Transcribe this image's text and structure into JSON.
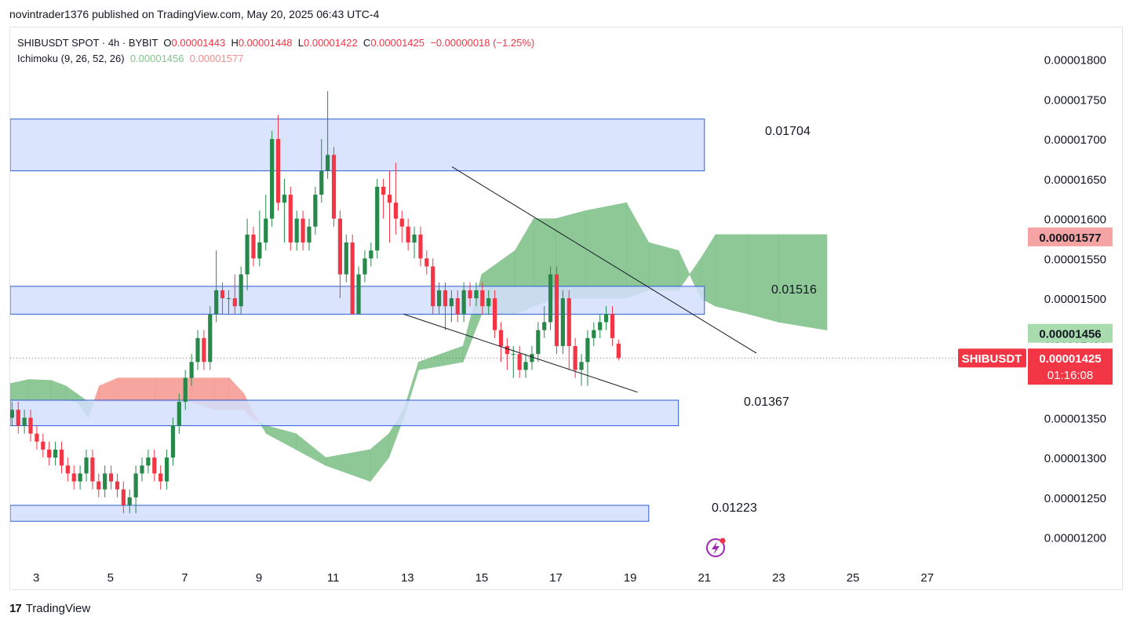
{
  "publisher_line": "novintrader1376 published on TradingView.com, May 20, 2025 06:43 UTC-4",
  "legend": {
    "symbol": "SHIBUSDT SPOT · 4h · BYBIT",
    "o_label": "O",
    "o": "0.00001443",
    "h_label": "H",
    "h": "0.00001448",
    "l_label": "L",
    "l": "0.00001422",
    "c_label": "C",
    "c": "0.00001425",
    "change": "−0.00000018 (−1.25%)",
    "ichimoku_label": "Ichimoku (9, 26, 52, 26)",
    "ichimoku_a": "0.00001456",
    "ichimoku_b": "0.00001577"
  },
  "footer": {
    "logo": "17",
    "brand": "TradingView"
  },
  "colors": {
    "up": "#26894a",
    "down": "#f23645",
    "zone_fill": "#d4dffc",
    "zone_border": "#2d5bd6",
    "cloud_bull": "#7bbf85",
    "cloud_bear": "#f5978e",
    "grid": "#ffffff"
  },
  "chart_data": {
    "type": "candlestick",
    "y_ticks": [
      "0.00001800",
      "0.00001750",
      "0.00001700",
      "0.00001650",
      "0.00001600",
      "0.00001550",
      "0.00001500",
      "0.00001450",
      "0.00001400",
      "0.00001350",
      "0.00001300",
      "0.00001250",
      "0.00001200"
    ],
    "x_ticks": [
      {
        "day": 3,
        "label": "3"
      },
      {
        "day": 5,
        "label": "5"
      },
      {
        "day": 7,
        "label": "7"
      },
      {
        "day": 9,
        "label": "9"
      },
      {
        "day": 11,
        "label": "11"
      },
      {
        "day": 13,
        "label": "13"
      },
      {
        "day": 15,
        "label": "15"
      },
      {
        "day": 17,
        "label": "17"
      },
      {
        "day": 19,
        "label": "19"
      },
      {
        "day": 21,
        "label": "21"
      },
      {
        "day": 23,
        "label": "23"
      },
      {
        "day": 25,
        "label": "25"
      },
      {
        "day": 27,
        "label": "27"
      }
    ],
    "ylim": [
      1.17e-05,
      1.84e-05
    ],
    "xlim_days": [
      2.3,
      29.5
    ],
    "zones": [
      {
        "top": 1.725e-05,
        "bottom": 1.66e-05,
        "day_start": 2.3,
        "day_end": 21.0,
        "label": "0.01704"
      },
      {
        "top": 1.515e-05,
        "bottom": 1.48e-05,
        "day_start": 2.3,
        "day_end": 21.0,
        "label": "0.01516"
      },
      {
        "top": 1.372e-05,
        "bottom": 1.34e-05,
        "day_start": 2.3,
        "day_end": 20.3,
        "label": "0.01367"
      },
      {
        "top": 1.24e-05,
        "bottom": 1.22e-05,
        "day_start": 2.3,
        "day_end": 19.5,
        "label": "0.01223"
      }
    ],
    "trendlines": [
      {
        "x1": 14.2,
        "y1": 1.665e-05,
        "x2": 22.4,
        "y2": 1.431e-05
      },
      {
        "x1": 12.9,
        "y1": 1.48e-05,
        "x2": 19.2,
        "y2": 1.382e-05
      }
    ],
    "price_badges": [
      {
        "value": "0.00001577",
        "price": 1.577e-05,
        "bg": "#f5a3a3",
        "fg": "#131722"
      },
      {
        "value": "0.00001456",
        "price": 1.456e-05,
        "bg": "#a8dbae",
        "fg": "#131722"
      }
    ],
    "current": {
      "symbol": "SHIBUSDT",
      "value": "0.00001425",
      "countdown": "01:16:08",
      "price": 1.425e-05
    },
    "cloud": [
      [
        2.3,
        1.393e-05,
        1.372e-05
      ],
      [
        2.8,
        1.398e-05,
        1.372e-05
      ],
      [
        3.4,
        1.397e-05,
        1.372e-05
      ],
      [
        3.8,
        1.39e-05,
        1.372e-05
      ],
      [
        4.1,
        1.38e-05,
        1.37e-05
      ],
      [
        4.4,
        1.37e-05,
        1.35e-05
      ],
      [
        4.7,
        1.37e-05,
        1.39e-05
      ],
      [
        5.2,
        1.37e-05,
        1.4e-05
      ],
      [
        6.2,
        1.37e-05,
        1.4e-05
      ],
      [
        7.2,
        1.37e-05,
        1.4e-05
      ],
      [
        7.8,
        1.36e-05,
        1.4e-05
      ],
      [
        8.2,
        1.36e-05,
        1.4e-05
      ],
      [
        8.6,
        1.36e-05,
        1.38e-05
      ],
      [
        8.8,
        1.35e-05,
        1.36e-05
      ],
      [
        9.2,
        1.34e-05,
        1.33e-05
      ],
      [
        10.0,
        1.33e-05,
        1.31e-05
      ],
      [
        10.8,
        1.3e-05,
        1.29e-05
      ],
      [
        12.0,
        1.31e-05,
        1.27e-05
      ],
      [
        12.5,
        1.33e-05,
        1.3e-05
      ],
      [
        12.9,
        1.36e-05,
        1.35e-05
      ],
      [
        13.3,
        1.42e-05,
        1.41e-05
      ],
      [
        14.5,
        1.44e-05,
        1.42e-05
      ],
      [
        15.0,
        1.53e-05,
        1.48e-05
      ],
      [
        15.9,
        1.56e-05,
        1.48e-05
      ],
      [
        16.4,
        1.6e-05,
        1.49e-05
      ],
      [
        17.0,
        1.6e-05,
        1.5e-05
      ],
      [
        17.8,
        1.61e-05,
        1.5e-05
      ],
      [
        18.9,
        1.62e-05,
        1.5e-05
      ],
      [
        19.5,
        1.57e-05,
        1.51e-05
      ],
      [
        20.3,
        1.56e-05,
        1.51e-05
      ],
      [
        20.6,
        1.53e-05,
        1.53e-05
      ],
      [
        20.9,
        1.55e-05,
        1.5e-05
      ],
      [
        21.3,
        1.58e-05,
        1.49e-05
      ],
      [
        22.2,
        1.58e-05,
        1.48e-05
      ],
      [
        23.0,
        1.58e-05,
        1.47e-05
      ],
      [
        24.3,
        1.58e-05,
        1.46e-05
      ]
    ],
    "candles": [
      [
        1.35e-05,
        1.36e-05,
        1.37e-05,
        1.34e-05
      ],
      [
        1.36e-05,
        1.34e-05,
        1.37e-05,
        1.33e-05
      ],
      [
        1.34e-05,
        1.35e-05,
        1.36e-05,
        1.33e-05
      ],
      [
        1.35e-05,
        1.33e-05,
        1.36e-05,
        1.32e-05
      ],
      [
        1.33e-05,
        1.32e-05,
        1.34e-05,
        1.31e-05
      ],
      [
        1.32e-05,
        1.31e-05,
        1.33e-05,
        1.3e-05
      ],
      [
        1.31e-05,
        1.3e-05,
        1.32e-05,
        1.29e-05
      ],
      [
        1.3e-05,
        1.31e-05,
        1.32e-05,
        1.29e-05
      ],
      [
        1.31e-05,
        1.29e-05,
        1.32e-05,
        1.28e-05
      ],
      [
        1.29e-05,
        1.28e-05,
        1.3e-05,
        1.27e-05
      ],
      [
        1.28e-05,
        1.27e-05,
        1.29e-05,
        1.26e-05
      ],
      [
        1.27e-05,
        1.28e-05,
        1.29e-05,
        1.26e-05
      ],
      [
        1.28e-05,
        1.3e-05,
        1.31e-05,
        1.27e-05
      ],
      [
        1.3e-05,
        1.27e-05,
        1.31e-05,
        1.26e-05
      ],
      [
        1.27e-05,
        1.26e-05,
        1.28e-05,
        1.25e-05
      ],
      [
        1.26e-05,
        1.28e-05,
        1.29e-05,
        1.25e-05
      ],
      [
        1.28e-05,
        1.27e-05,
        1.29e-05,
        1.26e-05
      ],
      [
        1.27e-05,
        1.26e-05,
        1.28e-05,
        1.25e-05
      ],
      [
        1.26e-05,
        1.24e-05,
        1.27e-05,
        1.23e-05
      ],
      [
        1.24e-05,
        1.25e-05,
        1.26e-05,
        1.23e-05
      ],
      [
        1.25e-05,
        1.28e-05,
        1.29e-05,
        1.23e-05
      ],
      [
        1.28e-05,
        1.29e-05,
        1.3e-05,
        1.27e-05
      ],
      [
        1.29e-05,
        1.3e-05,
        1.31e-05,
        1.28e-05
      ],
      [
        1.3e-05,
        1.28e-05,
        1.31e-05,
        1.27e-05
      ],
      [
        1.28e-05,
        1.27e-05,
        1.29e-05,
        1.26e-05
      ],
      [
        1.27e-05,
        1.3e-05,
        1.31e-05,
        1.26e-05
      ],
      [
        1.3e-05,
        1.34e-05,
        1.35e-05,
        1.29e-05
      ],
      [
        1.34e-05,
        1.37e-05,
        1.38e-05,
        1.33e-05
      ],
      [
        1.37e-05,
        1.4e-05,
        1.41e-05,
        1.36e-05
      ],
      [
        1.4e-05,
        1.42e-05,
        1.43e-05,
        1.39e-05
      ],
      [
        1.42e-05,
        1.45e-05,
        1.46e-05,
        1.41e-05
      ],
      [
        1.45e-05,
        1.42e-05,
        1.46e-05,
        1.41e-05
      ],
      [
        1.42e-05,
        1.48e-05,
        1.49e-05,
        1.41e-05
      ],
      [
        1.48e-05,
        1.51e-05,
        1.56e-05,
        1.47e-05
      ],
      [
        1.51e-05,
        1.5e-05,
        1.52e-05,
        1.48e-05
      ],
      [
        1.5e-05,
        1.5e-05,
        1.51e-05,
        1.48e-05
      ],
      [
        1.5e-05,
        1.49e-05,
        1.53e-05,
        1.48e-05
      ],
      [
        1.49e-05,
        1.53e-05,
        1.54e-05,
        1.48e-05
      ],
      [
        1.53e-05,
        1.58e-05,
        1.6e-05,
        1.51e-05
      ],
      [
        1.58e-05,
        1.55e-05,
        1.59e-05,
        1.54e-05
      ],
      [
        1.55e-05,
        1.57e-05,
        1.61e-05,
        1.54e-05
      ],
      [
        1.57e-05,
        1.6e-05,
        1.63e-05,
        1.56e-05
      ],
      [
        1.6e-05,
        1.7e-05,
        1.71e-05,
        1.59e-05
      ],
      [
        1.7e-05,
        1.62e-05,
        1.73e-05,
        1.61e-05
      ],
      [
        1.62e-05,
        1.63e-05,
        1.65e-05,
        1.57e-05
      ],
      [
        1.63e-05,
        1.57e-05,
        1.64e-05,
        1.56e-05
      ],
      [
        1.57e-05,
        1.6e-05,
        1.61e-05,
        1.56e-05
      ],
      [
        1.6e-05,
        1.57e-05,
        1.61e-05,
        1.56e-05
      ],
      [
        1.57e-05,
        1.59e-05,
        1.6e-05,
        1.56e-05
      ],
      [
        1.59e-05,
        1.63e-05,
        1.64e-05,
        1.58e-05
      ],
      [
        1.63e-05,
        1.66e-05,
        1.7e-05,
        1.62e-05
      ],
      [
        1.66e-05,
        1.68e-05,
        1.76e-05,
        1.65e-05
      ],
      [
        1.68e-05,
        1.6e-05,
        1.69e-05,
        1.59e-05
      ],
      [
        1.6e-05,
        1.53e-05,
        1.61e-05,
        1.5e-05
      ],
      [
        1.53e-05,
        1.57e-05,
        1.58e-05,
        1.52e-05
      ],
      [
        1.57e-05,
        1.48e-05,
        1.58e-05,
        1.48e-05
      ],
      [
        1.48e-05,
        1.53e-05,
        1.54e-05,
        1.48e-05
      ],
      [
        1.53e-05,
        1.55e-05,
        1.56e-05,
        1.52e-05
      ],
      [
        1.55e-05,
        1.56e-05,
        1.57e-05,
        1.54e-05
      ],
      [
        1.56e-05,
        1.64e-05,
        1.65e-05,
        1.55e-05
      ],
      [
        1.64e-05,
        1.63e-05,
        1.65e-05,
        1.6e-05
      ],
      [
        1.63e-05,
        1.62e-05,
        1.66e-05,
        1.57e-05
      ],
      [
        1.62e-05,
        1.6e-05,
        1.67e-05,
        1.58e-05
      ],
      [
        1.6e-05,
        1.59e-05,
        1.61e-05,
        1.57e-05
      ],
      [
        1.59e-05,
        1.57e-05,
        1.6e-05,
        1.56e-05
      ],
      [
        1.57e-05,
        1.58e-05,
        1.59e-05,
        1.55e-05
      ],
      [
        1.58e-05,
        1.55e-05,
        1.59e-05,
        1.54e-05
      ],
      [
        1.55e-05,
        1.54e-05,
        1.56e-05,
        1.53e-05
      ],
      [
        1.54e-05,
        1.49e-05,
        1.55e-05,
        1.48e-05
      ],
      [
        1.49e-05,
        1.51e-05,
        1.52e-05,
        1.48e-05
      ],
      [
        1.51e-05,
        1.49e-05,
        1.52e-05,
        1.46e-05
      ],
      [
        1.49e-05,
        1.5e-05,
        1.51e-05,
        1.47e-05
      ],
      [
        1.5e-05,
        1.48e-05,
        1.51e-05,
        1.47e-05
      ],
      [
        1.48e-05,
        1.51e-05,
        1.52e-05,
        1.47e-05
      ],
      [
        1.51e-05,
        1.5e-05,
        1.52e-05,
        1.49e-05
      ],
      [
        1.5e-05,
        1.51e-05,
        1.52e-05,
        1.49e-05
      ],
      [
        1.51e-05,
        1.49e-05,
        1.52e-05,
        1.48e-05
      ],
      [
        1.49e-05,
        1.5e-05,
        1.51e-05,
        1.48e-05
      ],
      [
        1.5e-05,
        1.46e-05,
        1.51e-05,
        1.45e-05
      ],
      [
        1.46e-05,
        1.44e-05,
        1.47e-05,
        1.42e-05
      ],
      [
        1.44e-05,
        1.43e-05,
        1.45e-05,
        1.41e-05
      ],
      [
        1.43e-05,
        1.43e-05,
        1.44e-05,
        1.4e-05
      ],
      [
        1.43e-05,
        1.41e-05,
        1.44e-05,
        1.4e-05
      ],
      [
        1.41e-05,
        1.42e-05,
        1.43e-05,
        1.4e-05
      ],
      [
        1.42e-05,
        1.43e-05,
        1.44e-05,
        1.41e-05
      ],
      [
        1.43e-05,
        1.46e-05,
        1.47e-05,
        1.42e-05
      ],
      [
        1.46e-05,
        1.47e-05,
        1.49e-05,
        1.45e-05
      ],
      [
        1.47e-05,
        1.53e-05,
        1.54e-05,
        1.46e-05
      ],
      [
        1.53e-05,
        1.44e-05,
        1.54e-05,
        1.43e-05
      ],
      [
        1.44e-05,
        1.5e-05,
        1.51e-05,
        1.43e-05
      ],
      [
        1.5e-05,
        1.44e-05,
        1.51e-05,
        1.41e-05
      ],
      [
        1.44e-05,
        1.41e-05,
        1.45e-05,
        1.4e-05
      ],
      [
        1.41e-05,
        1.42e-05,
        1.43e-05,
        1.39e-05
      ],
      [
        1.42e-05,
        1.45e-05,
        1.46e-05,
        1.39e-05
      ],
      [
        1.45e-05,
        1.46e-05,
        1.47e-05,
        1.44e-05
      ],
      [
        1.46e-05,
        1.47e-05,
        1.48e-05,
        1.45e-05
      ],
      [
        1.47e-05,
        1.48e-05,
        1.49e-05,
        1.46e-05
      ],
      [
        1.48e-05,
        1.45e-05,
        1.49e-05,
        1.44e-05
      ],
      [
        1.443e-05,
        1.425e-05,
        1.448e-05,
        1.422e-05
      ]
    ],
    "candle_start_day": 2.35,
    "candle_step_day": 0.1667
  }
}
